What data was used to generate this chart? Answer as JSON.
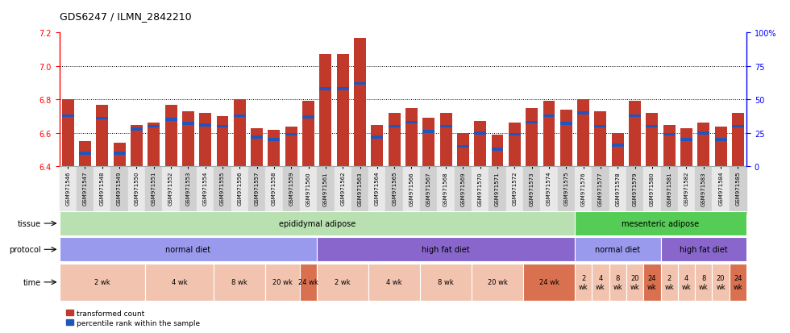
{
  "title": "GDS6247 / ILMN_2842210",
  "ylim_left": [
    6.4,
    7.2
  ],
  "ylim_right": [
    0,
    100
  ],
  "yticks_left": [
    6.4,
    6.6,
    6.8,
    7.0,
    7.2
  ],
  "yticks_right": [
    0,
    25,
    50,
    75,
    100
  ],
  "samples": [
    "GSM971546",
    "GSM971547",
    "GSM971548",
    "GSM971549",
    "GSM971550",
    "GSM971551",
    "GSM971552",
    "GSM971553",
    "GSM971554",
    "GSM971555",
    "GSM971556",
    "GSM971557",
    "GSM971558",
    "GSM971559",
    "GSM971560",
    "GSM971561",
    "GSM971562",
    "GSM971563",
    "GSM971564",
    "GSM971565",
    "GSM971566",
    "GSM971567",
    "GSM971568",
    "GSM971569",
    "GSM971570",
    "GSM971571",
    "GSM971572",
    "GSM971573",
    "GSM971574",
    "GSM971575",
    "GSM971576",
    "GSM971577",
    "GSM971578",
    "GSM971579",
    "GSM971580",
    "GSM971581",
    "GSM971582",
    "GSM971583",
    "GSM971584",
    "GSM971585"
  ],
  "bar_values": [
    6.8,
    6.55,
    6.77,
    6.54,
    6.65,
    6.66,
    6.77,
    6.73,
    6.72,
    6.7,
    6.8,
    6.63,
    6.62,
    6.64,
    6.79,
    7.07,
    7.07,
    7.17,
    6.65,
    6.72,
    6.75,
    6.69,
    6.72,
    6.6,
    6.67,
    6.59,
    6.66,
    6.75,
    6.79,
    6.74,
    6.8,
    6.73,
    6.6,
    6.79,
    6.72,
    6.65,
    6.63,
    6.66,
    6.64,
    6.72
  ],
  "percentile_values": [
    38,
    10,
    36,
    10,
    28,
    30,
    35,
    32,
    31,
    30,
    38,
    22,
    20,
    24,
    37,
    58,
    58,
    62,
    22,
    30,
    33,
    26,
    30,
    15,
    25,
    13,
    24,
    33,
    38,
    32,
    40,
    30,
    16,
    38,
    30,
    24,
    20,
    25,
    20,
    30
  ],
  "bar_color": "#c0392b",
  "blue_color": "#2255bb",
  "base_value": 6.4,
  "tissue_regions": [
    {
      "label": "epididymal adipose",
      "start": 0,
      "end": 30,
      "color": "#b8e0b0"
    },
    {
      "label": "mesenteric adipose",
      "start": 30,
      "end": 40,
      "color": "#55cc55"
    }
  ],
  "protocol_regions": [
    {
      "label": "normal diet",
      "start": 0,
      "end": 15,
      "color": "#9999ee"
    },
    {
      "label": "high fat diet",
      "start": 15,
      "end": 30,
      "color": "#8866cc"
    },
    {
      "label": "normal diet",
      "start": 30,
      "end": 35,
      "color": "#9999ee"
    },
    {
      "label": "high fat diet",
      "start": 35,
      "end": 40,
      "color": "#8866cc"
    }
  ],
  "time_regions": [
    {
      "label": "2 wk",
      "start": 0,
      "end": 5,
      "color": "#f2c4b0"
    },
    {
      "label": "4 wk",
      "start": 5,
      "end": 9,
      "color": "#f2c4b0"
    },
    {
      "label": "8 wk",
      "start": 9,
      "end": 12,
      "color": "#f2c4b0"
    },
    {
      "label": "20 wk",
      "start": 12,
      "end": 14,
      "color": "#f2c4b0"
    },
    {
      "label": "24 wk",
      "start": 14,
      "end": 15,
      "color": "#d97050"
    },
    {
      "label": "2 wk",
      "start": 15,
      "end": 18,
      "color": "#f2c4b0"
    },
    {
      "label": "4 wk",
      "start": 18,
      "end": 21,
      "color": "#f2c4b0"
    },
    {
      "label": "8 wk",
      "start": 21,
      "end": 24,
      "color": "#f2c4b0"
    },
    {
      "label": "20 wk",
      "start": 24,
      "end": 27,
      "color": "#f2c4b0"
    },
    {
      "label": "24 wk",
      "start": 27,
      "end": 30,
      "color": "#d97050"
    },
    {
      "label": "2\nwk",
      "start": 30,
      "end": 31,
      "color": "#f2c4b0"
    },
    {
      "label": "4\nwk",
      "start": 31,
      "end": 32,
      "color": "#f2c4b0"
    },
    {
      "label": "8\nwk",
      "start": 32,
      "end": 33,
      "color": "#f2c4b0"
    },
    {
      "label": "20\nwk",
      "start": 33,
      "end": 34,
      "color": "#f2c4b0"
    },
    {
      "label": "24\nwk",
      "start": 34,
      "end": 35,
      "color": "#d97050"
    },
    {
      "label": "2\nwk",
      "start": 35,
      "end": 36,
      "color": "#f2c4b0"
    },
    {
      "label": "4\nwk",
      "start": 36,
      "end": 37,
      "color": "#f2c4b0"
    },
    {
      "label": "8\nwk",
      "start": 37,
      "end": 38,
      "color": "#f2c4b0"
    },
    {
      "label": "20\nwk",
      "start": 38,
      "end": 39,
      "color": "#f2c4b0"
    },
    {
      "label": "24\nwk",
      "start": 39,
      "end": 40,
      "color": "#d97050"
    }
  ],
  "legend": [
    {
      "label": "transformed count",
      "color": "#c0392b"
    },
    {
      "label": "percentile rank within the sample",
      "color": "#2255bb"
    }
  ],
  "tick_bg_even": "#e8e8e8",
  "tick_bg_odd": "#d0d0d0"
}
